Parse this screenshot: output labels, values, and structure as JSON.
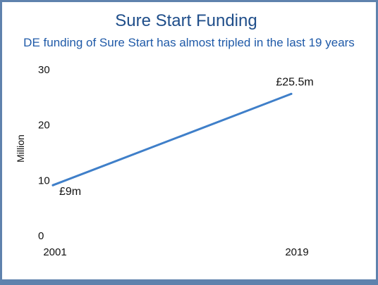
{
  "chart_data": {
    "type": "line",
    "title": "Sure Start Funding",
    "subtitle": "DE funding of Sure Start has almost tripled in the last 19 years",
    "xlabel": "",
    "ylabel": "Million",
    "x": [
      2001,
      2019
    ],
    "x_tick_labels": [
      "2001",
      "2019"
    ],
    "series": [
      {
        "values": [
          9,
          25.5
        ],
        "color": "#3f7fc9"
      }
    ],
    "data_labels": [
      "£9m",
      "£25.5m"
    ],
    "y_ticks": [
      0,
      10,
      20,
      30
    ],
    "y_tick_labels": [
      "0",
      "10",
      "20",
      "30"
    ],
    "ylim": [
      0,
      30
    ],
    "grid": false,
    "legend": "none"
  },
  "colors": {
    "frame": "#5f82ad",
    "title": "#1f4e8a",
    "subtitle": "#1f5aa8",
    "line": "#3f7fc9"
  }
}
